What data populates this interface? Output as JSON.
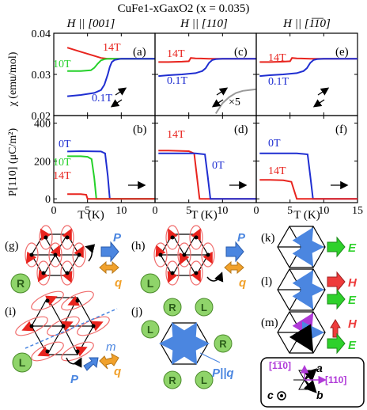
{
  "title": "CuFe1-xGaxO2 (x = 0.035)",
  "columns": [
    "H || [001]",
    "H || [110]",
    "H || [1̅1̅0]"
  ],
  "y_label_chi": "χ (emu/mol)",
  "y_label_P": "P[110] (μC/m²)",
  "x_label": "T (K)",
  "panel_letters": {
    "a": "(a)",
    "b": "(b)",
    "c": "(c)",
    "d": "(d)",
    "e": "(e)",
    "f": "(f)",
    "g": "(g)",
    "h": "(h)",
    "i": "(i)",
    "j": "(j)",
    "k": "(k)",
    "l": "(l)",
    "m": "(m)"
  },
  "colors": {
    "red": "#e8241e",
    "green": "#25d12a",
    "blue": "#1f2ed1",
    "gray": "#9a9a9a",
    "arrow_blue": "#4b86e0",
    "arrow_orange": "#f1a12b",
    "arrow_green": "#2ed12b",
    "arrow_red": "#ee3b3b",
    "chiral_green": "#8fd46a",
    "ellipse": "#f06b6b",
    "purple": "#b03ad8"
  },
  "labels": {
    "a": {
      "t14": "14T",
      "t10": "10T",
      "t01": "0.1T"
    },
    "b": {
      "t0": "0T",
      "t10": "10T",
      "t14": "14T"
    },
    "c": {
      "t14": "14T",
      "t01": "0.1T",
      "x5": "×5"
    },
    "d": {
      "t14": "14T",
      "t0": "0T"
    },
    "e": {
      "t14": "14T",
      "t01": "0.1T"
    },
    "f": {
      "t0": "0T",
      "t14": "14T"
    },
    "P": "P",
    "q": "q",
    "E": "E",
    "H": "H",
    "m": "m",
    "Pq": "P||q",
    "R": "R",
    "L": "L",
    "axis_a": "a",
    "axis_b": "b",
    "axis_c": "c",
    "axis_110": "[110]",
    "axis_1b10": "[1̅1̅0]"
  },
  "chart_data": [
    {
      "panel": "a",
      "type": "line",
      "ylabel": "χ (emu/mol)",
      "ylim": [
        0.02,
        0.04
      ],
      "xlim": [
        0,
        15
      ],
      "yticks": [
        "0.04",
        "0.03",
        "0.02"
      ],
      "series": [
        {
          "name": "14T",
          "color": "red",
          "x": [
            2,
            4,
            6,
            7,
            8,
            8.6,
            9,
            10,
            12,
            15
          ],
          "y": [
            0.0365,
            0.0355,
            0.0345,
            0.034,
            0.0338,
            0.0338,
            0.0338,
            0.0338,
            0.0338,
            0.0338
          ]
        },
        {
          "name": "10T",
          "color": "green",
          "x": [
            2,
            4,
            5.5,
            6,
            6.5,
            7,
            7.5,
            8,
            8.5,
            9,
            10,
            12,
            15
          ],
          "y": [
            0.0308,
            0.0308,
            0.031,
            0.0316,
            0.0326,
            0.0334,
            0.0337,
            0.0338,
            0.0338,
            0.0338,
            0.0338,
            0.0338,
            0.0338
          ]
        },
        {
          "name": "0.1T",
          "color": "blue",
          "x": [
            2,
            4,
            6,
            7,
            7.5,
            8,
            8.3,
            8.6,
            9,
            10,
            12,
            15
          ],
          "y": [
            0.0247,
            0.025,
            0.0255,
            0.0262,
            0.0275,
            0.03,
            0.0318,
            0.033,
            0.0335,
            0.0338,
            0.0338,
            0.0338
          ]
        }
      ]
    },
    {
      "panel": "b",
      "type": "line",
      "ylabel": "P[110] (μC/m²)",
      "ylim": [
        -20,
        440
      ],
      "xlim": [
        0,
        15
      ],
      "yticks": [
        "400",
        "200",
        "0"
      ],
      "series": [
        {
          "name": "0T",
          "color": "blue",
          "x": [
            2,
            4,
            7,
            7.6,
            8,
            8.3,
            10,
            15
          ],
          "y": [
            250,
            252,
            250,
            240,
            120,
            0,
            0,
            0
          ]
        },
        {
          "name": "10T",
          "color": "green",
          "x": [
            2,
            4,
            5,
            5.6,
            6,
            6.3,
            10,
            15
          ],
          "y": [
            225,
            225,
            222,
            210,
            110,
            0,
            0,
            0
          ]
        },
        {
          "name": "14T",
          "color": "red",
          "x": [
            2,
            4,
            4.8,
            5,
            10,
            15
          ],
          "y": [
            25,
            25,
            22,
            0,
            0,
            0
          ]
        }
      ]
    },
    {
      "panel": "c",
      "type": "line",
      "ylim": [
        0.02,
        0.04
      ],
      "xlim": [
        0,
        15
      ],
      "series": [
        {
          "name": "14T",
          "color": "red",
          "x": [
            0.5,
            2,
            4,
            5,
            5.3,
            6,
            8,
            10,
            15
          ],
          "y": [
            0.033,
            0.033,
            0.0331,
            0.0332,
            0.034,
            0.0339,
            0.0338,
            0.0338,
            0.0338
          ]
        },
        {
          "name": "0.1T",
          "color": "blue",
          "x": [
            0.5,
            2,
            4,
            6,
            7,
            7.5,
            8,
            8.5,
            9,
            10,
            15
          ],
          "y": [
            0.0296,
            0.0298,
            0.03,
            0.0303,
            0.0308,
            0.0315,
            0.0328,
            0.0335,
            0.0337,
            0.0338,
            0.0338
          ]
        },
        {
          "name": "×5",
          "color": "gray",
          "x": [
            9,
            10,
            11,
            12,
            13,
            14,
            15
          ],
          "y": [
            0.0205,
            0.023,
            0.0245,
            0.0255,
            0.026,
            0.0262,
            0.0264
          ]
        }
      ]
    },
    {
      "panel": "d",
      "type": "line",
      "ylim": [
        -20,
        440
      ],
      "xlim": [
        0,
        15
      ],
      "series": [
        {
          "name": "14T",
          "color": "red",
          "x": [
            0.5,
            2,
            5,
            5.8,
            6.2,
            6.6,
            10,
            15
          ],
          "y": [
            255,
            255,
            252,
            240,
            120,
            0,
            0,
            0
          ]
        },
        {
          "name": "0T",
          "color": "blue",
          "x": [
            0.5,
            2,
            6,
            7.4,
            7.8,
            8.2,
            10,
            15
          ],
          "y": [
            240,
            240,
            240,
            235,
            120,
            0,
            0,
            0
          ]
        }
      ]
    },
    {
      "panel": "e",
      "type": "line",
      "ylim": [
        0.02,
        0.04
      ],
      "xlim": [
        0,
        15
      ],
      "series": [
        {
          "name": "14T",
          "color": "red",
          "x": [
            0.5,
            2,
            4,
            5,
            5.3,
            6,
            8,
            10,
            15
          ],
          "y": [
            0.033,
            0.033,
            0.0331,
            0.0332,
            0.034,
            0.0339,
            0.0338,
            0.0338,
            0.0338
          ]
        },
        {
          "name": "0.1T",
          "color": "blue",
          "x": [
            0.5,
            2,
            4,
            6,
            7,
            7.5,
            8,
            8.5,
            9,
            10,
            15
          ],
          "y": [
            0.0296,
            0.0298,
            0.03,
            0.0303,
            0.0308,
            0.0315,
            0.0328,
            0.0335,
            0.0337,
            0.0338,
            0.0338
          ]
        }
      ]
    },
    {
      "panel": "f",
      "type": "line",
      "ylim": [
        -20,
        440
      ],
      "xlim": [
        0,
        15
      ],
      "xlabel": "T (K)",
      "xticks": [
        "0",
        "5",
        "10",
        "15"
      ],
      "series": [
        {
          "name": "0T",
          "color": "blue",
          "x": [
            0.5,
            2,
            6,
            7.6,
            8,
            8.4,
            10,
            15
          ],
          "y": [
            240,
            240,
            240,
            235,
            120,
            0,
            0,
            0
          ]
        },
        {
          "name": "14T",
          "color": "red",
          "x": [
            0.5,
            2,
            4,
            5.2,
            5.6,
            6,
            10,
            15
          ],
          "y": [
            100,
            100,
            98,
            90,
            45,
            0,
            0,
            0
          ]
        }
      ]
    }
  ]
}
